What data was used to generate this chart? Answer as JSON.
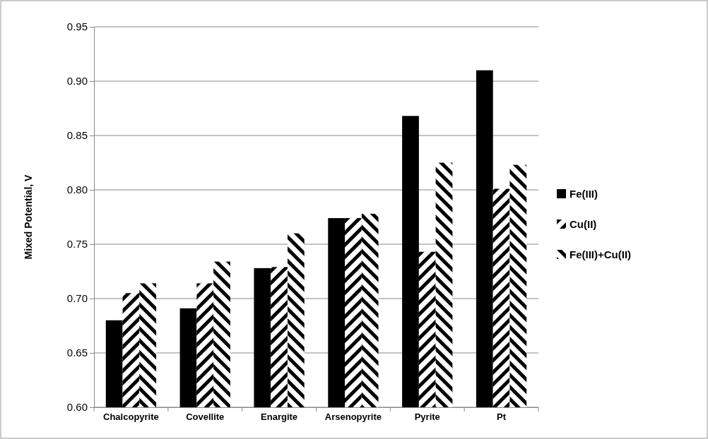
{
  "chart_data": {
    "type": "bar",
    "ylabel": "Mixed Potential, V",
    "categories": [
      "Chalcopyrite",
      "Covellite",
      "Enargite",
      "Arsenopyrite",
      "Pyrite",
      "Pt"
    ],
    "series": [
      {
        "name": "Fe(III)",
        "color": "#000000",
        "values": [
          0.68,
          0.691,
          0.728,
          0.774,
          0.868,
          0.91
        ]
      },
      {
        "name": "Cu(II)",
        "color": "#000000",
        "values": [
          0.705,
          0.714,
          0.729,
          0.774,
          0.743,
          0.801
        ]
      },
      {
        "name": "Fe(III)+Cu(II)",
        "color": "#000000",
        "values": [
          0.714,
          0.734,
          0.76,
          0.778,
          0.825,
          0.823
        ]
      }
    ],
    "ylim": [
      0.6,
      0.95
    ],
    "yticks": [
      {
        "value": 0.6,
        "label": "0.60"
      },
      {
        "value": 0.65,
        "label": "0.65"
      },
      {
        "value": 0.7,
        "label": "0.70"
      },
      {
        "value": 0.75,
        "label": "0.75"
      },
      {
        "value": 0.8,
        "label": "0.80"
      },
      {
        "value": 0.85,
        "label": "0.85"
      },
      {
        "value": 0.9,
        "label": "0.90"
      },
      {
        "value": 0.95,
        "label": "0.95"
      }
    ],
    "grid": "y",
    "legend": "right"
  }
}
